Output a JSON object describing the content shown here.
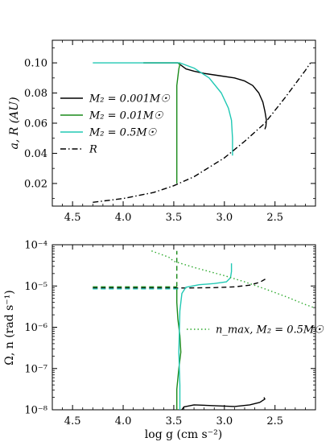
{
  "chart_data": [
    {
      "type": "line",
      "panel": "top",
      "ylabel": "a, R (AU)",
      "xlabel": "",
      "xlim": [
        4.7,
        2.1
      ],
      "ylim": [
        0.005,
        0.115
      ],
      "x_ticks": [
        4.5,
        4.0,
        3.5,
        3.0,
        2.5
      ],
      "x_tick_labels": [
        "4.5",
        "4.0",
        "3.5",
        "3.0",
        "2.5"
      ],
      "y_ticks": [
        0.02,
        0.04,
        0.06,
        0.08,
        0.1
      ],
      "y_tick_labels": [
        "0.02",
        "0.04",
        "0.06",
        "0.08",
        "0.10"
      ],
      "legend_position": "left-center",
      "series": [
        {
          "name": "M₂ = 0.001M☉",
          "color": "#000000",
          "style": "solid",
          "x": [
            3.8,
            3.46,
            3.42,
            3.38,
            3.3,
            3.2,
            3.05,
            2.9,
            2.8,
            2.72,
            2.66,
            2.62,
            2.6,
            2.585,
            2.59,
            2.6
          ],
          "y": [
            0.1,
            0.1,
            0.098,
            0.096,
            0.0945,
            0.093,
            0.0915,
            0.09,
            0.088,
            0.085,
            0.08,
            0.074,
            0.068,
            0.062,
            0.058,
            0.056
          ]
        },
        {
          "name": "M₂ = 0.01M☉",
          "color": "#1a8a1a",
          "style": "solid",
          "x": [
            3.8,
            3.46,
            3.44,
            3.45,
            3.47,
            3.47,
            3.47
          ],
          "y": [
            0.1,
            0.1,
            0.099,
            0.096,
            0.085,
            0.05,
            0.02
          ]
        },
        {
          "name": "M₂ = 0.5M☉",
          "color": "#20c8b4",
          "style": "solid",
          "x": [
            4.3,
            4.0,
            3.5,
            3.44,
            3.3,
            3.15,
            3.03,
            2.96,
            2.93,
            2.92,
            2.92
          ],
          "y": [
            0.1,
            0.1,
            0.1,
            0.1,
            0.0965,
            0.09,
            0.08,
            0.07,
            0.062,
            0.05,
            0.0385
          ]
        },
        {
          "name": "R",
          "color": "#000000",
          "style": "dashdot",
          "x": [
            4.3,
            4.0,
            3.7,
            3.5,
            3.3,
            3.0,
            2.8,
            2.6,
            2.4,
            2.2,
            2.15
          ],
          "y": [
            0.0075,
            0.01,
            0.014,
            0.0185,
            0.0245,
            0.037,
            0.048,
            0.06,
            0.077,
            0.095,
            0.1
          ]
        }
      ]
    },
    {
      "type": "line",
      "panel": "bottom",
      "ylabel": "Ω, n (rad s⁻¹)",
      "xlabel": "log g (cm s⁻²)",
      "xlim": [
        4.7,
        2.1
      ],
      "yscale": "log",
      "ylim_log10": [
        -8,
        -4
      ],
      "x_ticks": [
        4.5,
        4.0,
        3.5,
        3.0,
        2.5
      ],
      "x_tick_labels": [
        "4.5",
        "4.0",
        "3.5",
        "3.0",
        "2.5"
      ],
      "y_ticks_log10": [
        -8,
        -7,
        -6,
        -5,
        -4
      ],
      "y_tick_labels": [
        "10⁻⁸",
        "10⁻⁷",
        "10⁻⁶",
        "10⁻⁵",
        "10⁻⁴"
      ],
      "legend_position": "center-right",
      "series": [
        {
          "name": "",
          "color": "#000000",
          "style": "solid",
          "x": [
            3.42,
            3.4,
            3.3,
            3.1,
            2.9,
            2.75,
            2.65,
            2.6,
            2.61
          ],
          "log_y": [
            -8.0,
            -7.93,
            -7.88,
            -7.9,
            -7.92,
            -7.88,
            -7.82,
            -7.74,
            -7.7
          ]
        },
        {
          "name": "",
          "color": "#000000",
          "style": "dashed",
          "x": [
            4.3,
            4.0,
            3.7,
            3.5,
            3.3,
            3.1,
            2.9,
            2.75,
            2.65,
            2.6,
            2.58
          ],
          "log_y": [
            -5.05,
            -5.05,
            -5.05,
            -5.05,
            -5.045,
            -5.04,
            -5.02,
            -4.98,
            -4.91,
            -4.84,
            -4.79
          ]
        },
        {
          "name": "",
          "color": "#1a8a1a",
          "style": "solid",
          "x": [
            3.47,
            3.47,
            3.45,
            3.43,
            3.44,
            3.46,
            3.47,
            3.47,
            3.47,
            3.47
          ],
          "log_y": [
            -8.0,
            -7.5,
            -7.0,
            -6.6,
            -6.2,
            -5.8,
            -5.4,
            -5.2,
            -5.1,
            -5.05
          ]
        },
        {
          "name": "",
          "color": "#1a8a1a",
          "style": "dashed",
          "x": [
            4.3,
            4.0,
            3.7,
            3.5,
            3.47
          ],
          "log_y": [
            -5.02,
            -5.02,
            -5.02,
            -5.02,
            -5.02
          ]
        },
        {
          "name": "",
          "color": "#1a8a1a",
          "style": "dashed",
          "x": [
            3.47,
            3.47
          ],
          "log_y": [
            -5.02,
            -4.15
          ]
        },
        {
          "name": "",
          "color": "#20c8b4",
          "style": "solid",
          "x": [
            3.44,
            3.44,
            3.45,
            3.44,
            3.42,
            3.38,
            3.25,
            3.1,
            2.98,
            2.94,
            2.93,
            2.93
          ],
          "log_y": [
            -8.0,
            -7.4,
            -6.6,
            -5.6,
            -5.18,
            -5.03,
            -4.97,
            -4.94,
            -4.9,
            -4.8,
            -4.65,
            -4.45
          ]
        },
        {
          "name": "",
          "color": "#20c8b4",
          "style": "dashed",
          "x": [
            4.3,
            4.0,
            3.7,
            3.5,
            3.44
          ],
          "log_y": [
            -5.07,
            -5.07,
            -5.07,
            -5.07,
            -5.07
          ]
        },
        {
          "name": "n_max, M₂ = 0.5M☉",
          "color": "#2eaa2e",
          "style": "dotted",
          "x": [
            3.72,
            3.55,
            3.5,
            3.3,
            3.0,
            2.8,
            2.6,
            2.4,
            2.2,
            2.12
          ],
          "log_y": [
            -4.15,
            -4.3,
            -4.4,
            -4.55,
            -4.75,
            -4.9,
            -5.07,
            -5.25,
            -5.45,
            -5.52
          ]
        }
      ]
    }
  ]
}
